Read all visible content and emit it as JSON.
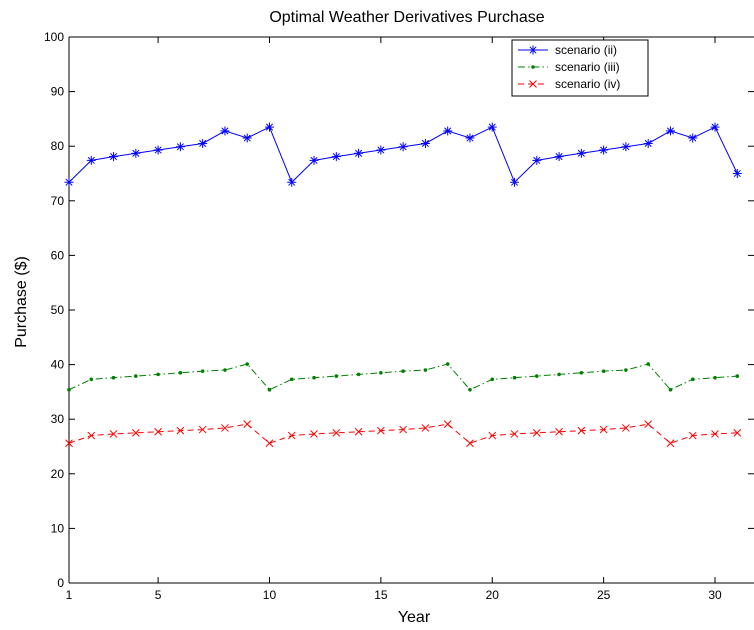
{
  "chart_data": {
    "type": "line",
    "title": "Optimal Weather Derivatives Purchase",
    "xlabel": "Year",
    "ylabel": "Purchase ($)",
    "xlim": [
      1,
      31
    ],
    "ylim": [
      0,
      100
    ],
    "xticks": [
      1,
      5,
      10,
      15,
      20,
      25,
      30
    ],
    "yticks": [
      0,
      10,
      20,
      30,
      40,
      50,
      60,
      70,
      80,
      90,
      100
    ],
    "grid": false,
    "legend_position": "top-right",
    "x": [
      1,
      2,
      3,
      4,
      5,
      6,
      7,
      8,
      9,
      10,
      11,
      12,
      13,
      14,
      15,
      16,
      17,
      18,
      19,
      20,
      21,
      22,
      23,
      24,
      25,
      26,
      27,
      28,
      29,
      30,
      31
    ],
    "series": [
      {
        "name": "scenario (ii)",
        "color": "#0000ff",
        "marker": "asterisk",
        "line_style": "solid",
        "values": [
          73.4,
          77.4,
          78.1,
          78.7,
          79.3,
          79.9,
          80.5,
          82.8,
          81.5,
          83.5,
          73.4,
          77.4,
          78.1,
          78.7,
          79.3,
          79.9,
          80.5,
          82.8,
          81.5,
          83.5,
          73.4,
          77.4,
          78.1,
          78.7,
          79.3,
          79.9,
          80.5,
          82.8,
          81.5,
          83.5,
          75.0
        ]
      },
      {
        "name": "scenario (iii)",
        "color": "#008000",
        "marker": "dot",
        "line_style": "dash-dot",
        "values": [
          35.4,
          37.3,
          37.6,
          37.9,
          38.2,
          38.5,
          38.8,
          39.0,
          40.1,
          35.4,
          37.3,
          37.6,
          37.9,
          38.2,
          38.5,
          38.8,
          39.0,
          40.1,
          35.4,
          37.3,
          37.6,
          37.9,
          38.2,
          38.5,
          38.8,
          39.0,
          40.1,
          35.4,
          37.3,
          37.6,
          37.9
        ]
      },
      {
        "name": "scenario (iv)",
        "color": "#ff0000",
        "marker": "x",
        "line_style": "dashed",
        "values": [
          25.6,
          27.0,
          27.3,
          27.5,
          27.7,
          27.9,
          28.1,
          28.4,
          29.1,
          25.6,
          27.0,
          27.3,
          27.5,
          27.7,
          27.9,
          28.1,
          28.4,
          29.1,
          25.6,
          27.0,
          27.3,
          27.5,
          27.7,
          27.9,
          28.1,
          28.4,
          29.1,
          25.6,
          27.0,
          27.3,
          27.5
        ]
      }
    ]
  }
}
